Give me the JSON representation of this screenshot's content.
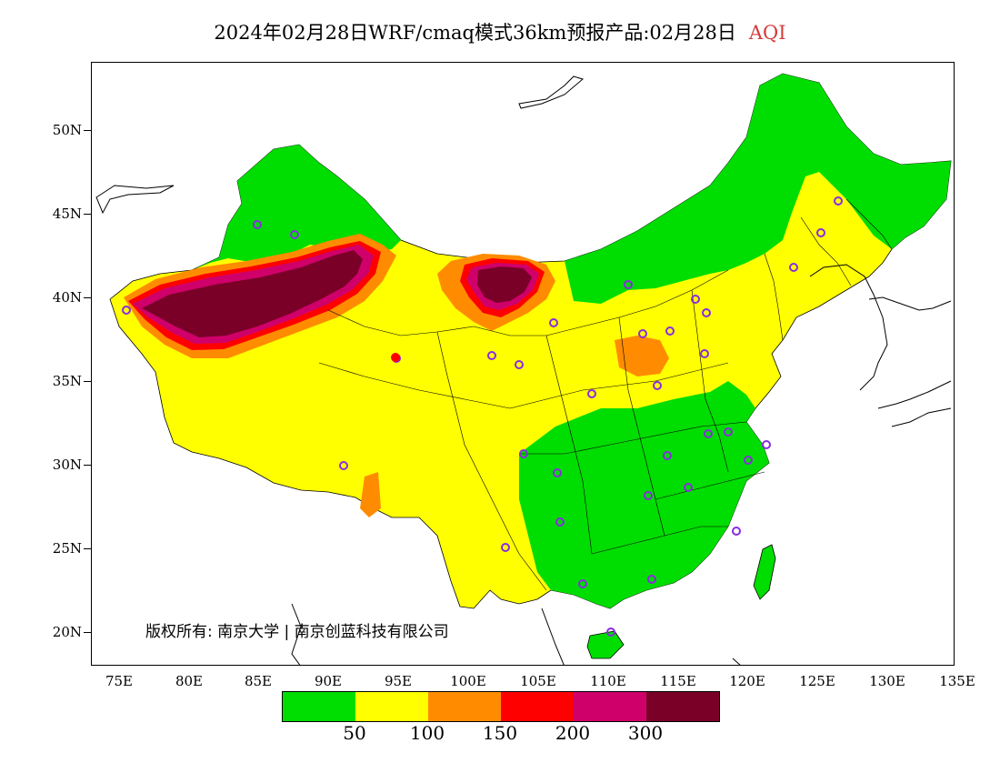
{
  "title": {
    "main": "2024年02月28日WRF/cmaq模式36km预报产品:02月28日",
    "product": "AQI"
  },
  "axes": {
    "lat_labels": [
      "50N",
      "45N",
      "40N",
      "35N",
      "30N",
      "25N",
      "20N"
    ],
    "lon_labels": [
      "75E",
      "80E",
      "85E",
      "90E",
      "95E",
      "100E",
      "105E",
      "110E",
      "115E",
      "120E",
      "125E",
      "130E",
      "135E"
    ]
  },
  "copyright": "版权所有: 南京大学 | 南京创蓝科技有限公司",
  "legend": {
    "colors": [
      "#00dd00",
      "#ffff00",
      "#ff8c00",
      "#ff0000",
      "#d0006a",
      "#7a0028"
    ],
    "labels": [
      "50",
      "100",
      "150",
      "200",
      "300"
    ]
  },
  "colors": {
    "good": "#00dd00",
    "moderate": "#ffff00",
    "unhealthy_sensitive": "#ff8c00",
    "unhealthy": "#ff0000",
    "very_unhealthy": "#d0006a",
    "hazardous": "#7a0028",
    "station": "#8a2be2"
  }
}
